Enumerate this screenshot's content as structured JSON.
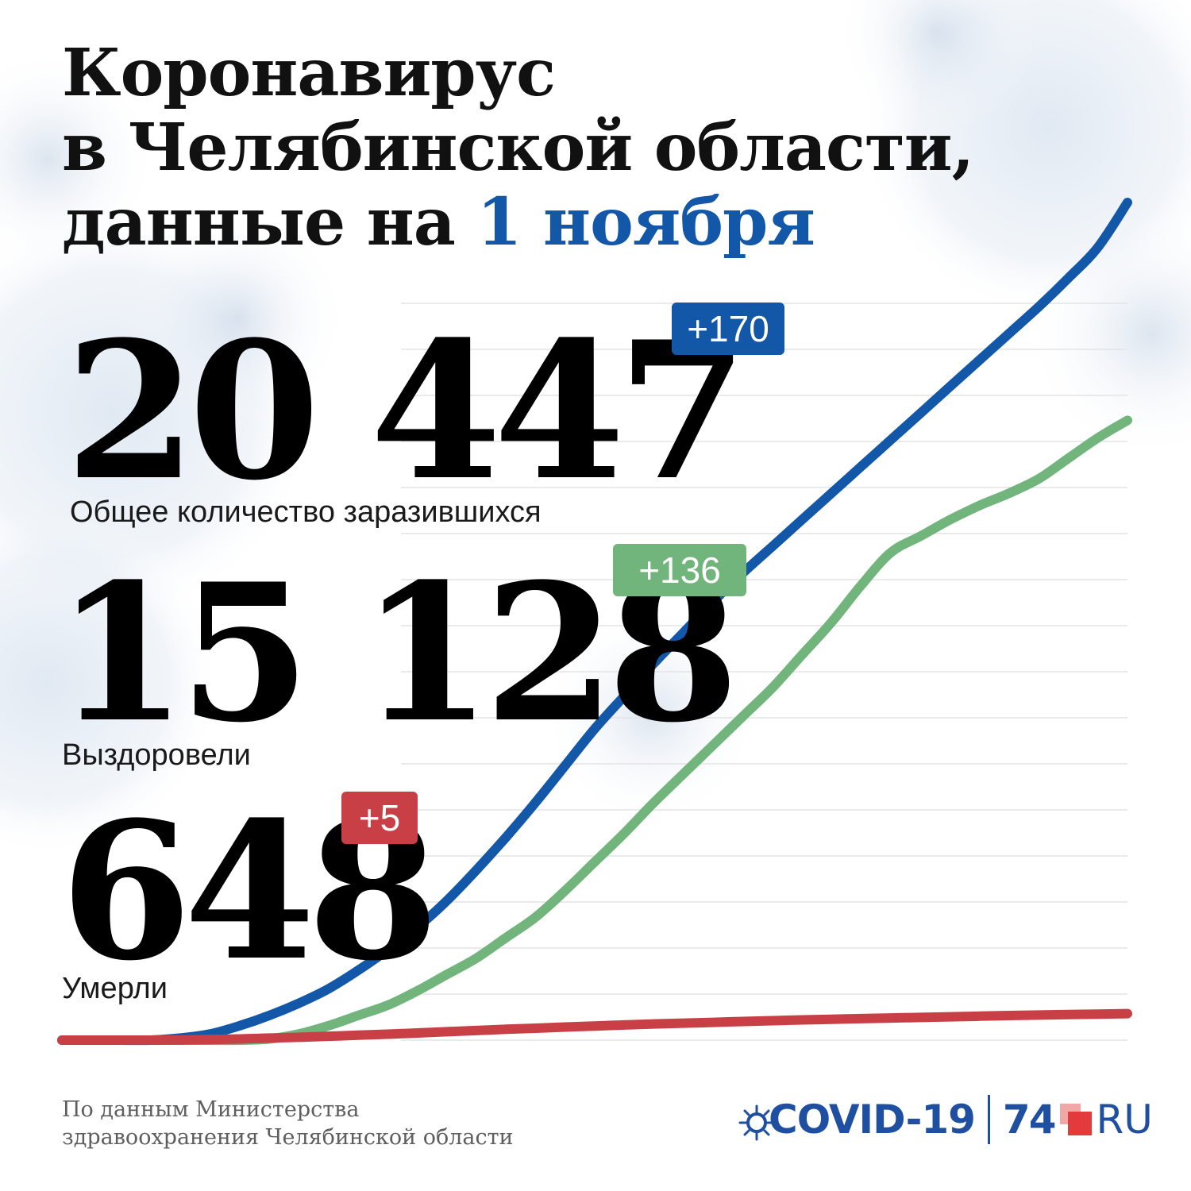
{
  "title": {
    "line1": "Коронавирус",
    "line2": "в Челябинской области,",
    "line3_prefix": "данные на ",
    "line3_date": "1 ноября"
  },
  "stats": {
    "infected": {
      "value": "20 447",
      "delta": "+170",
      "label": "Общее количество заразившихся"
    },
    "recovered": {
      "value": "15 128",
      "delta": "+136",
      "label": "Выздоровели"
    },
    "deaths": {
      "value": "648",
      "delta": "+5",
      "label": "Умерли"
    }
  },
  "colors": {
    "infected": "#1257a8",
    "recovered": "#72b57c",
    "deaths": "#c84046",
    "accent": "#1257a8",
    "logo": "#1e4fa0"
  },
  "footer": {
    "source_line1": "По данным Министерства",
    "source_line2": "здравоохранения Челябинской области",
    "logo_covid": "COVID-19",
    "logo_num": "74",
    "logo_ru": "RU",
    "logo_icon": "virus-icon"
  },
  "chart_data": {
    "type": "line",
    "ylim": [
      0,
      22000
    ],
    "grid": true,
    "series": [
      {
        "key": "infected",
        "values": [
          0,
          0,
          0,
          0,
          50,
          150,
          350,
          600,
          900,
          1250,
          1700,
          2200,
          2750,
          3400,
          4150,
          4950,
          5800,
          6700,
          7600,
          8400,
          9200,
          9950,
          10700,
          11400,
          12050,
          12700,
          13350,
          14000,
          14650,
          15300,
          15950,
          16600,
          17250,
          17900,
          18600,
          19350,
          20447
        ]
      },
      {
        "key": "recovered",
        "values": [
          0,
          0,
          0,
          0,
          0,
          0,
          0,
          30,
          150,
          350,
          600,
          850,
          1200,
          1600,
          2000,
          2500,
          3000,
          3650,
          4350,
          5050,
          5800,
          6500,
          7200,
          7900,
          8600,
          9400,
          10200,
          11100,
          11900,
          12300,
          12700,
          13050,
          13350,
          13700,
          14200,
          14700,
          15128
        ]
      },
      {
        "key": "deaths",
        "values": [
          0,
          0,
          0,
          0,
          5,
          15,
          30,
          50,
          70,
          95,
          120,
          145,
          175,
          205,
          235,
          265,
          290,
          320,
          345,
          370,
          395,
          415,
          435,
          455,
          475,
          495,
          510,
          525,
          540,
          555,
          570,
          585,
          600,
          612,
          624,
          636,
          648
        ]
      }
    ]
  }
}
